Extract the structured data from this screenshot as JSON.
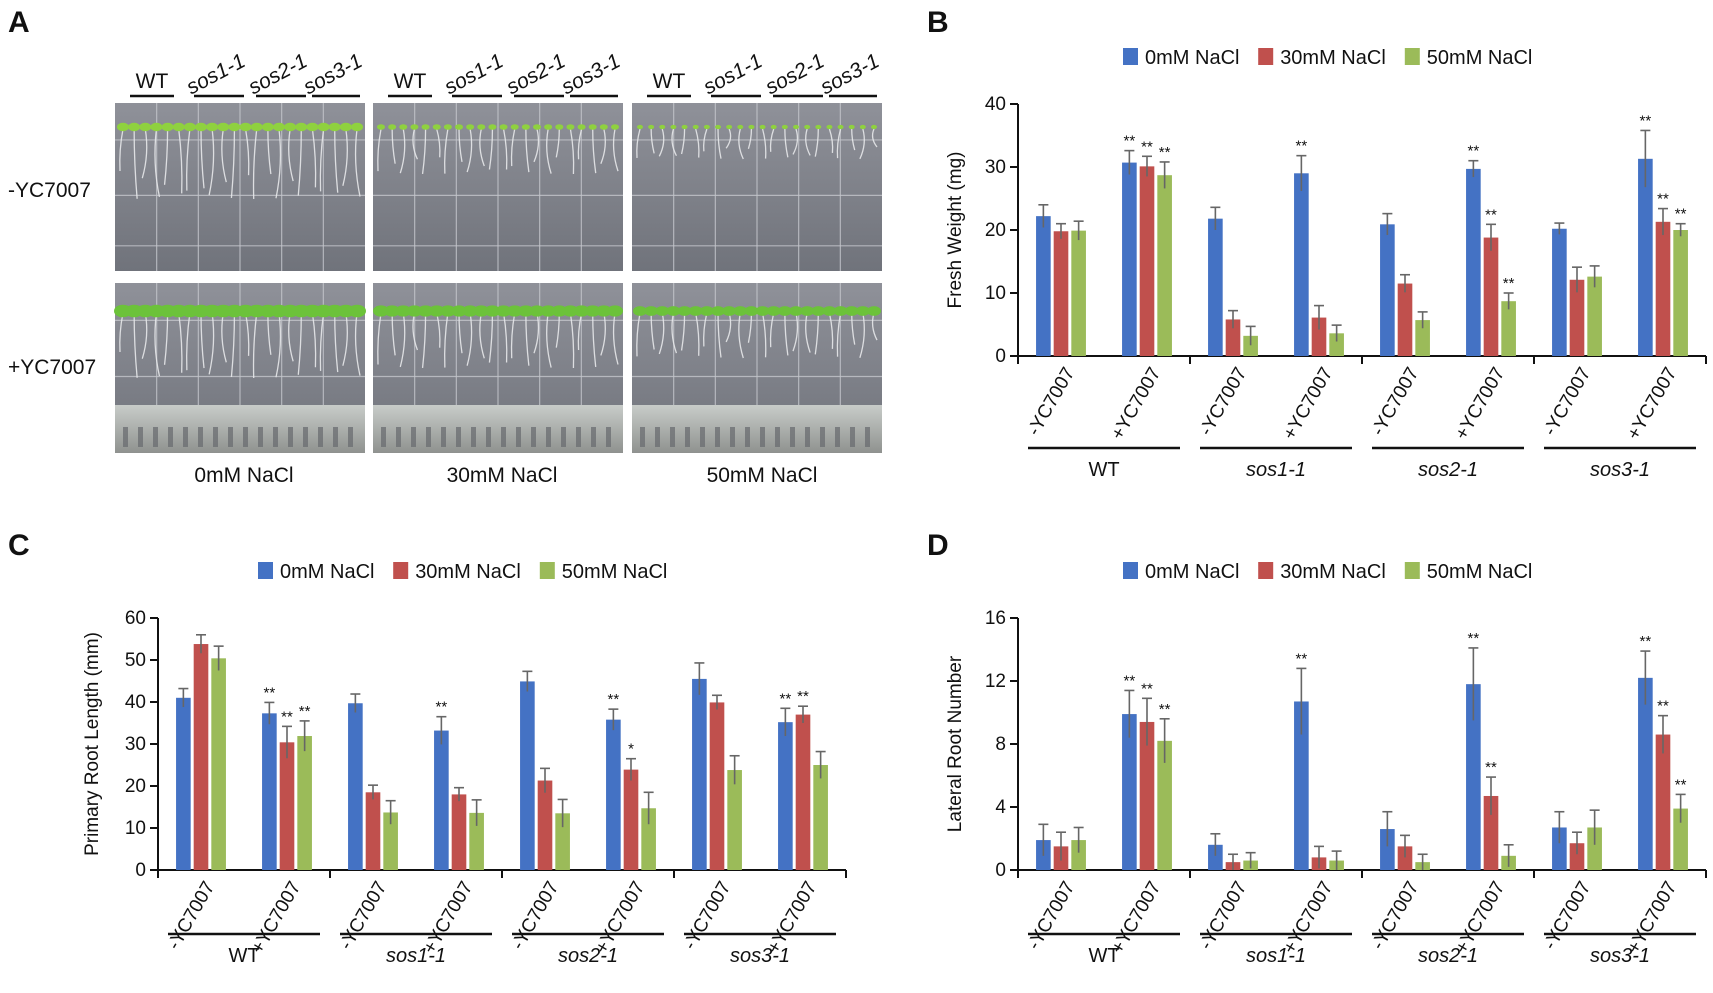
{
  "panels": {
    "a": {
      "letter": "A"
    },
    "b": {
      "letter": "B"
    },
    "c": {
      "letter": "C"
    },
    "d": {
      "letter": "D"
    }
  },
  "photo": {
    "columns": [
      "WT",
      "sos1-1",
      "sos2-1",
      "sos3-1"
    ],
    "rows": [
      "-YC7007",
      "+YC7007"
    ],
    "conditions": [
      "0mM NaCl",
      "30mM NaCl",
      "50mM NaCl"
    ]
  },
  "chart_data": [
    {
      "panel": "B",
      "type": "bar",
      "title": "",
      "ylabel": "Fresh Weight (mg)",
      "xlabel": "",
      "ylim": [
        0,
        40
      ],
      "yticks": [
        0,
        10,
        20,
        30,
        40
      ],
      "groups": [
        "WT",
        "sos1-1",
        "sos2-1",
        "sos3-1"
      ],
      "categories": [
        "-YC7007",
        "+YC7007",
        "-YC7007",
        "+YC7007",
        "-YC7007",
        "+YC7007",
        "-YC7007",
        "+YC7007"
      ],
      "series": [
        {
          "name": "0mM NaCl",
          "color": "#4472c4",
          "values": [
            22.2,
            30.7,
            21.8,
            29.0,
            20.9,
            29.7,
            20.2,
            31.3
          ],
          "errors": [
            1.8,
            1.9,
            1.8,
            2.8,
            1.7,
            1.3,
            0.9,
            4.5
          ],
          "sig": [
            "",
            "**",
            "",
            "**",
            "",
            "**",
            "",
            "**"
          ]
        },
        {
          "name": "30mM NaCl",
          "color": "#c0504d",
          "values": [
            19.8,
            30.1,
            5.8,
            6.1,
            11.5,
            18.8,
            12.1,
            21.3
          ],
          "errors": [
            1.2,
            1.6,
            1.4,
            1.9,
            1.4,
            2.1,
            2.0,
            2.1
          ],
          "sig": [
            "",
            "**",
            "",
            "",
            "",
            "**",
            "",
            "**"
          ]
        },
        {
          "name": "50mM NaCl",
          "color": "#9bbb59",
          "values": [
            19.9,
            28.7,
            3.2,
            3.6,
            5.7,
            8.7,
            12.6,
            20.0
          ],
          "errors": [
            1.5,
            2.1,
            1.5,
            1.3,
            1.3,
            1.3,
            1.7,
            1.0
          ],
          "sig": [
            "",
            "**",
            "",
            "",
            "",
            "**",
            "",
            "**"
          ]
        }
      ]
    },
    {
      "panel": "C",
      "type": "bar",
      "title": "",
      "ylabel": "Primary Root Length (mm)",
      "xlabel": "",
      "ylim": [
        0,
        60
      ],
      "yticks": [
        0,
        10,
        20,
        30,
        40,
        50,
        60
      ],
      "groups": [
        "WT",
        "sos1-1",
        "sos2-1",
        "sos3-1"
      ],
      "categories": [
        "-YC7007",
        "+YC7007",
        "-YC7007",
        "+YC7007",
        "-YC7007",
        "+YC7007",
        "-YC7007",
        "+YC7007"
      ],
      "series": [
        {
          "name": "0mM NaCl",
          "color": "#4472c4",
          "values": [
            41.0,
            37.3,
            39.7,
            33.2,
            44.9,
            35.8,
            45.5,
            35.2
          ],
          "errors": [
            2.2,
            2.6,
            2.2,
            3.3,
            2.4,
            2.5,
            3.8,
            3.3
          ],
          "sig": [
            "",
            "**",
            "",
            "**",
            "",
            "**",
            "",
            "**"
          ]
        },
        {
          "name": "30mM NaCl",
          "color": "#c0504d",
          "values": [
            53.8,
            30.4,
            18.5,
            18.0,
            21.3,
            23.9,
            39.9,
            37.0
          ],
          "errors": [
            2.2,
            3.8,
            1.7,
            1.6,
            2.9,
            2.6,
            1.7,
            2.0
          ],
          "sig": [
            "",
            "**",
            "",
            "",
            "",
            "*",
            "",
            "**"
          ]
        },
        {
          "name": "50mM NaCl",
          "color": "#9bbb59",
          "values": [
            50.4,
            31.9,
            13.7,
            13.6,
            13.5,
            14.7,
            23.8,
            25.0
          ],
          "errors": [
            2.9,
            3.6,
            2.8,
            3.1,
            3.3,
            3.8,
            3.4,
            3.2
          ],
          "sig": [
            "",
            "**",
            "",
            "",
            "",
            "",
            "",
            ""
          ]
        }
      ]
    },
    {
      "panel": "D",
      "type": "bar",
      "title": "",
      "ylabel": "Lateral Root Number",
      "xlabel": "",
      "ylim": [
        0,
        16
      ],
      "yticks": [
        0,
        4,
        8,
        12,
        16
      ],
      "groups": [
        "WT",
        "sos1-1",
        "sos2-1",
        "sos3-1"
      ],
      "categories": [
        "-YC7007",
        "+YC7007",
        "-YC7007",
        "+YC7007",
        "-YC7007",
        "+YC7007",
        "-YC7007",
        "+YC7007"
      ],
      "series": [
        {
          "name": "0mM NaCl",
          "color": "#4472c4",
          "values": [
            1.9,
            9.9,
            1.6,
            10.7,
            2.6,
            11.8,
            2.7,
            12.2
          ],
          "errors": [
            1.0,
            1.5,
            0.7,
            2.1,
            1.1,
            2.3,
            1.0,
            1.7
          ],
          "sig": [
            "",
            "**",
            "",
            "**",
            "",
            "**",
            "",
            "**"
          ]
        },
        {
          "name": "30mM NaCl",
          "color": "#c0504d",
          "values": [
            1.5,
            9.4,
            0.5,
            0.8,
            1.5,
            4.7,
            1.7,
            8.6
          ],
          "errors": [
            0.9,
            1.5,
            0.5,
            0.7,
            0.7,
            1.2,
            0.7,
            1.2
          ],
          "sig": [
            "",
            "**",
            "",
            "",
            "",
            "**",
            "",
            "**"
          ]
        },
        {
          "name": "50mM NaCl",
          "color": "#9bbb59",
          "values": [
            1.9,
            8.2,
            0.6,
            0.6,
            0.5,
            0.9,
            2.7,
            3.9
          ],
          "errors": [
            0.8,
            1.4,
            0.5,
            0.6,
            0.5,
            0.7,
            1.1,
            0.9
          ],
          "sig": [
            "",
            "**",
            "",
            "",
            "",
            "",
            "",
            "**"
          ]
        }
      ]
    }
  ]
}
